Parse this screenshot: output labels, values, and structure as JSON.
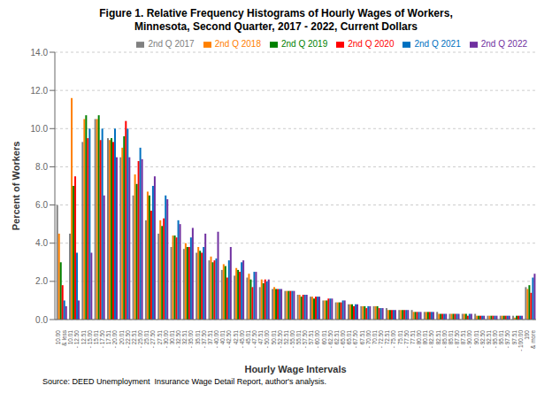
{
  "chart_data": {
    "type": "bar",
    "title": "Figure 1. Relative Frequency Histograms of Hourly Wages of Workers,\nMinnesota, Second Quarter, 2017 - 2022, Current Dollars",
    "xlabel": "Hourly Wage Intervals",
    "ylabel": "Percent of Workers",
    "annotations": [
      "Source: DEED Unemployment  Insurance Wage Detail Report, author's analysis."
    ],
    "categories": [
      "10.00 & less",
      "10.01 - 12.50",
      "12.51 - 15.00",
      "15.01 - 17.50",
      "17.51 - 20.00",
      "20.01 - 22.50",
      "22.51 - 25.00",
      "25.01 - 27.50",
      "27.51 - 30.00",
      "30.01 - 32.50",
      "32.51 - 35.00",
      "35.01 - 37.50",
      "37.51 - 40.00",
      "40.01 - 42.50",
      "42.51 - 45.00",
      "45.01 - 47.50",
      "47.51 - 50.00",
      "50.01 - 52.50",
      "52.51 - 55.00",
      "55.01 - 57.50",
      "57.51 - 60.00",
      "60.01 - 62.50",
      "62.51 - 65.00",
      "65.01 - 67.50",
      "67.51 - 70.00",
      "70.01 - 72.50",
      "72.51 - 75.00",
      "75.01 - 77.50",
      "77.51 - 80.00",
      "80.01 - 82.50",
      "82.51 - 85.00",
      "85.01 - 87.50",
      "87.51 - 90.00",
      "90.01 - 92.50",
      "92.51 - 95.00",
      "95.01 - 97.50",
      "97.51 - 100.00",
      "100 & more"
    ],
    "series": [
      {
        "name": "2nd Q 2017",
        "color": "#808080",
        "values": [
          6.0,
          4.5,
          9.3,
          10.5,
          9.5,
          8.5,
          6.5,
          5.2,
          4.5,
          3.8,
          3.7,
          3.5,
          3.1,
          2.6,
          2.3,
          2.2,
          1.7,
          1.6,
          1.5,
          1.3,
          1.2,
          1.0,
          0.9,
          0.8,
          0.7,
          0.7,
          0.6,
          0.5,
          0.5,
          0.4,
          0.4,
          0.3,
          0.3,
          0.3,
          0.2,
          0.2,
          0.2,
          1.7
        ]
      },
      {
        "name": "2nd Q 2018",
        "color": "#FF8000",
        "values": [
          4.5,
          11.6,
          10.5,
          10.5,
          9.4,
          9.0,
          7.6,
          6.7,
          5.2,
          4.4,
          4.0,
          3.8,
          3.3,
          2.9,
          2.7,
          2.4,
          2.1,
          1.7,
          1.5,
          1.3,
          1.2,
          1.0,
          0.9,
          0.8,
          0.7,
          0.7,
          0.5,
          0.5,
          0.4,
          0.4,
          0.3,
          0.3,
          0.3,
          0.2,
          0.2,
          0.2,
          0.1,
          1.6
        ]
      },
      {
        "name": "2nd Q 2019",
        "color": "#008000",
        "values": [
          3.0,
          7.0,
          10.7,
          10.7,
          9.5,
          9.6,
          7.1,
          6.5,
          4.9,
          4.4,
          3.8,
          3.6,
          3.0,
          2.8,
          2.6,
          2.1,
          1.9,
          1.6,
          1.5,
          1.2,
          1.1,
          1.0,
          0.9,
          0.8,
          0.7,
          0.7,
          0.5,
          0.5,
          0.4,
          0.4,
          0.3,
          0.3,
          0.3,
          0.2,
          0.2,
          0.2,
          0.2,
          1.8
        ]
      },
      {
        "name": "2nd Q 2020",
        "color": "#FF0000",
        "values": [
          1.8,
          7.5,
          9.5,
          9.4,
          9.3,
          10.4,
          8.3,
          5.7,
          5.3,
          4.3,
          3.8,
          3.5,
          3.1,
          2.2,
          2.5,
          1.7,
          2.1,
          1.6,
          1.5,
          1.3,
          1.2,
          1.1,
          0.9,
          0.7,
          0.6,
          0.6,
          0.5,
          0.5,
          0.4,
          0.4,
          0.3,
          0.3,
          0.2,
          0.2,
          0.2,
          0.2,
          0.2,
          1.4
        ]
      },
      {
        "name": "2nd Q 2021",
        "color": "#0070C0",
        "values": [
          1.0,
          3.5,
          10.0,
          10.0,
          10.0,
          10.0,
          9.0,
          7.0,
          6.5,
          5.2,
          4.3,
          3.8,
          3.2,
          3.1,
          3.0,
          2.5,
          2.0,
          1.6,
          1.5,
          1.3,
          1.2,
          1.1,
          1.0,
          0.8,
          0.7,
          0.6,
          0.5,
          0.5,
          0.4,
          0.4,
          0.3,
          0.3,
          0.3,
          0.2,
          0.2,
          0.2,
          0.2,
          2.2
        ]
      },
      {
        "name": "2nd Q 2022",
        "color": "#7030A0",
        "values": [
          0.7,
          1.0,
          3.5,
          6.5,
          8.5,
          8.5,
          8.4,
          7.5,
          6.3,
          5.0,
          4.8,
          4.5,
          4.6,
          3.8,
          3.1,
          2.5,
          2.1,
          1.6,
          1.5,
          1.3,
          1.2,
          1.1,
          1.0,
          0.8,
          0.7,
          0.6,
          0.5,
          0.5,
          0.4,
          0.4,
          0.3,
          0.3,
          0.3,
          0.2,
          0.2,
          0.2,
          0.2,
          2.4
        ]
      }
    ],
    "ylim": [
      0,
      14.0
    ],
    "yticks": [
      {
        "value": 0.0,
        "label": "0.0"
      },
      {
        "value": 2.0,
        "label": "2.0"
      },
      {
        "value": 4.0,
        "label": "4.0"
      },
      {
        "value": 6.0,
        "label": "6.0"
      },
      {
        "value": 8.0,
        "label": "8.0"
      },
      {
        "value": 10.0,
        "label": "10.0"
      },
      {
        "value": 12.0,
        "label": "12.0"
      },
      {
        "value": 14.0,
        "label": "14.0"
      }
    ],
    "grid": true,
    "legend": "upper right"
  }
}
